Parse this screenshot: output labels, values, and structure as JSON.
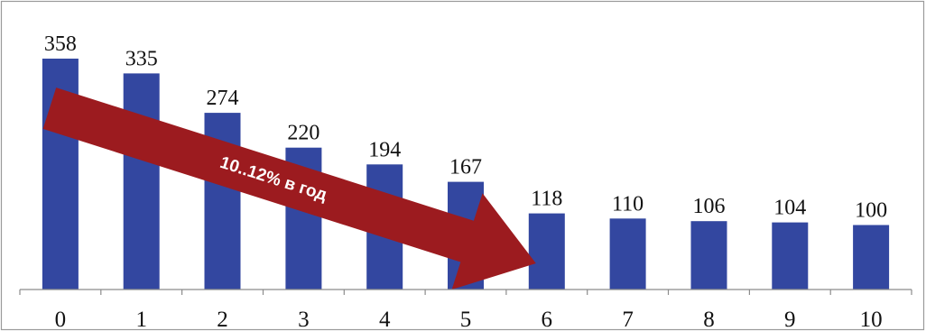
{
  "chart_data": {
    "type": "bar",
    "categories": [
      "0",
      "1",
      "2",
      "3",
      "4",
      "5",
      "6",
      "7",
      "8",
      "9",
      "10"
    ],
    "values": [
      358,
      335,
      274,
      220,
      194,
      167,
      118,
      110,
      106,
      104,
      100
    ],
    "value_labels": [
      "358",
      "335",
      "274",
      "220",
      "194",
      "167",
      "118",
      "110",
      "106",
      "104",
      "100"
    ],
    "ylim": [
      0,
      400
    ],
    "grid": false,
    "legend": "none",
    "annotation": {
      "text": "10..12% в год",
      "shape": "arrow",
      "from_category": "0",
      "to_category": "6"
    },
    "colors": {
      "bar": "#3347a0",
      "arrow": "#9c1b1f",
      "arrow_text": "#ffffff",
      "frame": "#9a9a9a",
      "axis": "#8c8c8c"
    }
  }
}
